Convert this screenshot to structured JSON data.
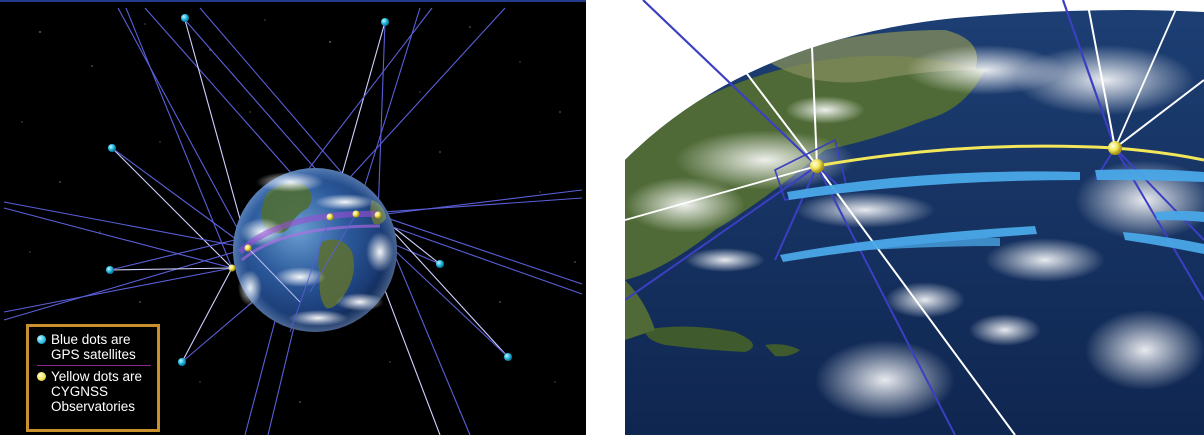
{
  "legend": {
    "blue_label_line1": "Blue dots are",
    "blue_label_line2": "GPS satellites",
    "yellow_label_line1": "Yellow dots are",
    "yellow_label_line2": "CYGNSS",
    "yellow_label_line3": "Observatories"
  },
  "colors": {
    "gps_satellite": "#2cc0e6",
    "cygnss_observatory": "#f2e65a",
    "legend_border": "#c9912c",
    "signal_line": "#5a5fd8",
    "track_swath": "#4aa8e8"
  }
}
